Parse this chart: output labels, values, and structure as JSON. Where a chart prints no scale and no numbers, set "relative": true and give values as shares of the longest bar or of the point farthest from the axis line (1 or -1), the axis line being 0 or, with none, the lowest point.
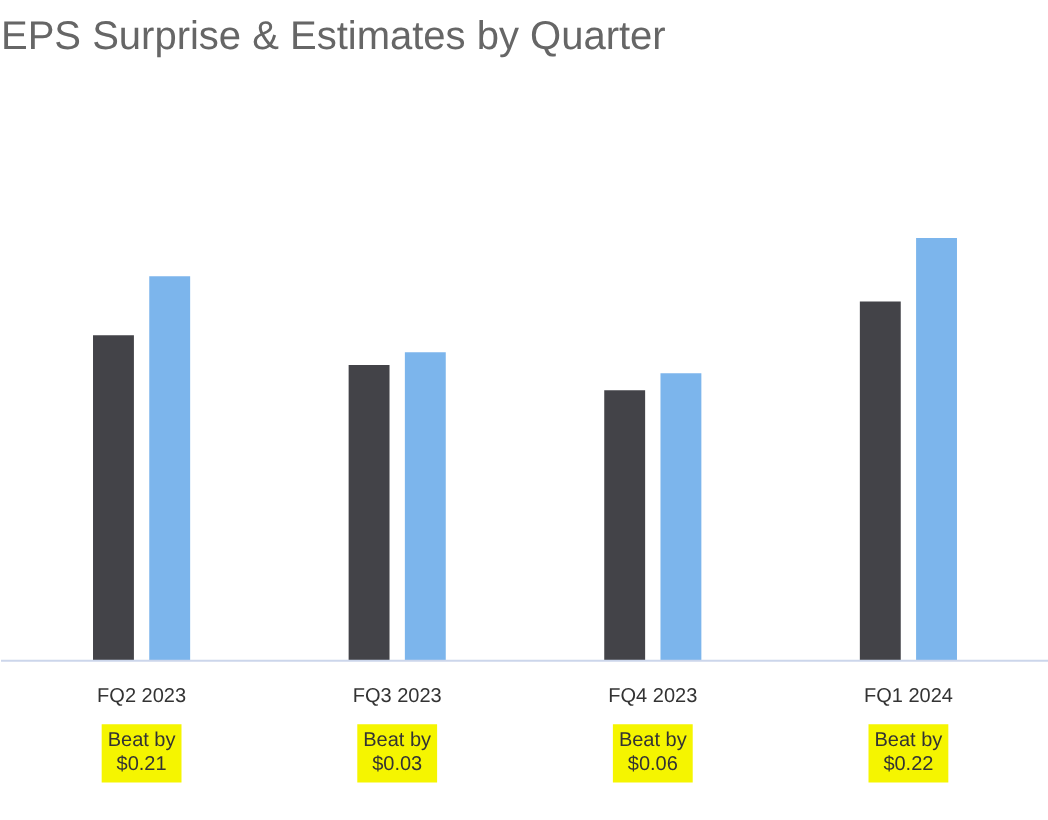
{
  "chart_data": {
    "type": "bar",
    "title": "EPS Surprise & Estimates by Quarter",
    "relative": true,
    "categories": [
      "FQ2 2023",
      "FQ3 2023",
      "FQ4 2023",
      "FQ1 2024"
    ],
    "series": [
      {
        "color": "#434348",
        "values": [
          0.77,
          0.7,
          0.64,
          0.85
        ]
      },
      {
        "color": "#7cb5ec",
        "values": [
          0.91,
          0.73,
          0.68,
          1.0
        ]
      }
    ],
    "annotations": [
      "Beat by $0.21",
      "Beat by $0.03",
      "Beat by $0.06",
      "Beat by $0.22"
    ]
  }
}
